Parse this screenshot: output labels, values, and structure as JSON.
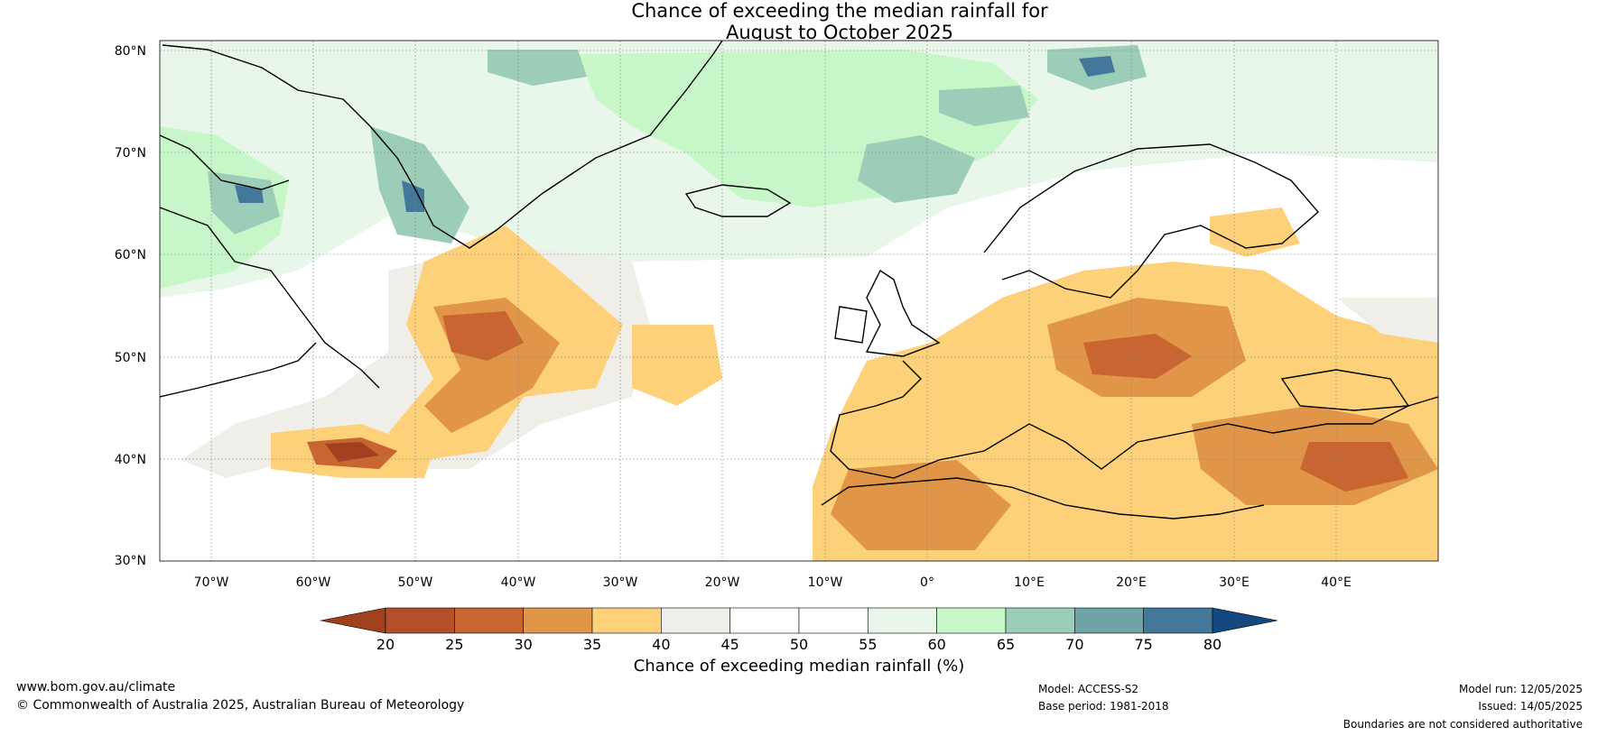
{
  "title": {
    "line1": "Chance of exceeding the median rainfall for",
    "line2": "August to October 2025"
  },
  "map": {
    "lat_ticks": [
      "30°N",
      "40°N",
      "50°N",
      "60°N",
      "70°N",
      "80°N"
    ],
    "lon_ticks": [
      "70°W",
      "60°W",
      "50°W",
      "40°W",
      "30°W",
      "20°W",
      "10°W",
      "0°",
      "10°E",
      "20°E",
      "30°E",
      "40°E"
    ],
    "lat_range": [
      30,
      81
    ],
    "lon_range": [
      -75,
      50
    ]
  },
  "legend": {
    "title": "Chance of exceeding median rainfall (%)",
    "ticks": [
      "20",
      "25",
      "30",
      "35",
      "40",
      "45",
      "50",
      "55",
      "60",
      "65",
      "70",
      "75",
      "80"
    ],
    "colors": [
      "#a0401f",
      "#b3502a",
      "#c86530",
      "#e09548",
      "#fdd07a",
      "#f0eee8",
      "#ffffff",
      "#ffffff",
      "#e9f7ea",
      "#c7f7c8",
      "#9ccdb8",
      "#6fa3a8",
      "#43789a",
      "#14487e"
    ]
  },
  "footer": {
    "url": "www.bom.gov.au/climate",
    "copyright": "© Commonwealth of Australia 2025, Australian Bureau of Meteorology",
    "model": "Model: ACCESS-S2",
    "base_period": "Base period: 1981-2018",
    "model_run": "Model run: 12/05/2025",
    "issued": "Issued: 14/05/2025",
    "disclaimer": "Boundaries are not considered authoritative"
  }
}
